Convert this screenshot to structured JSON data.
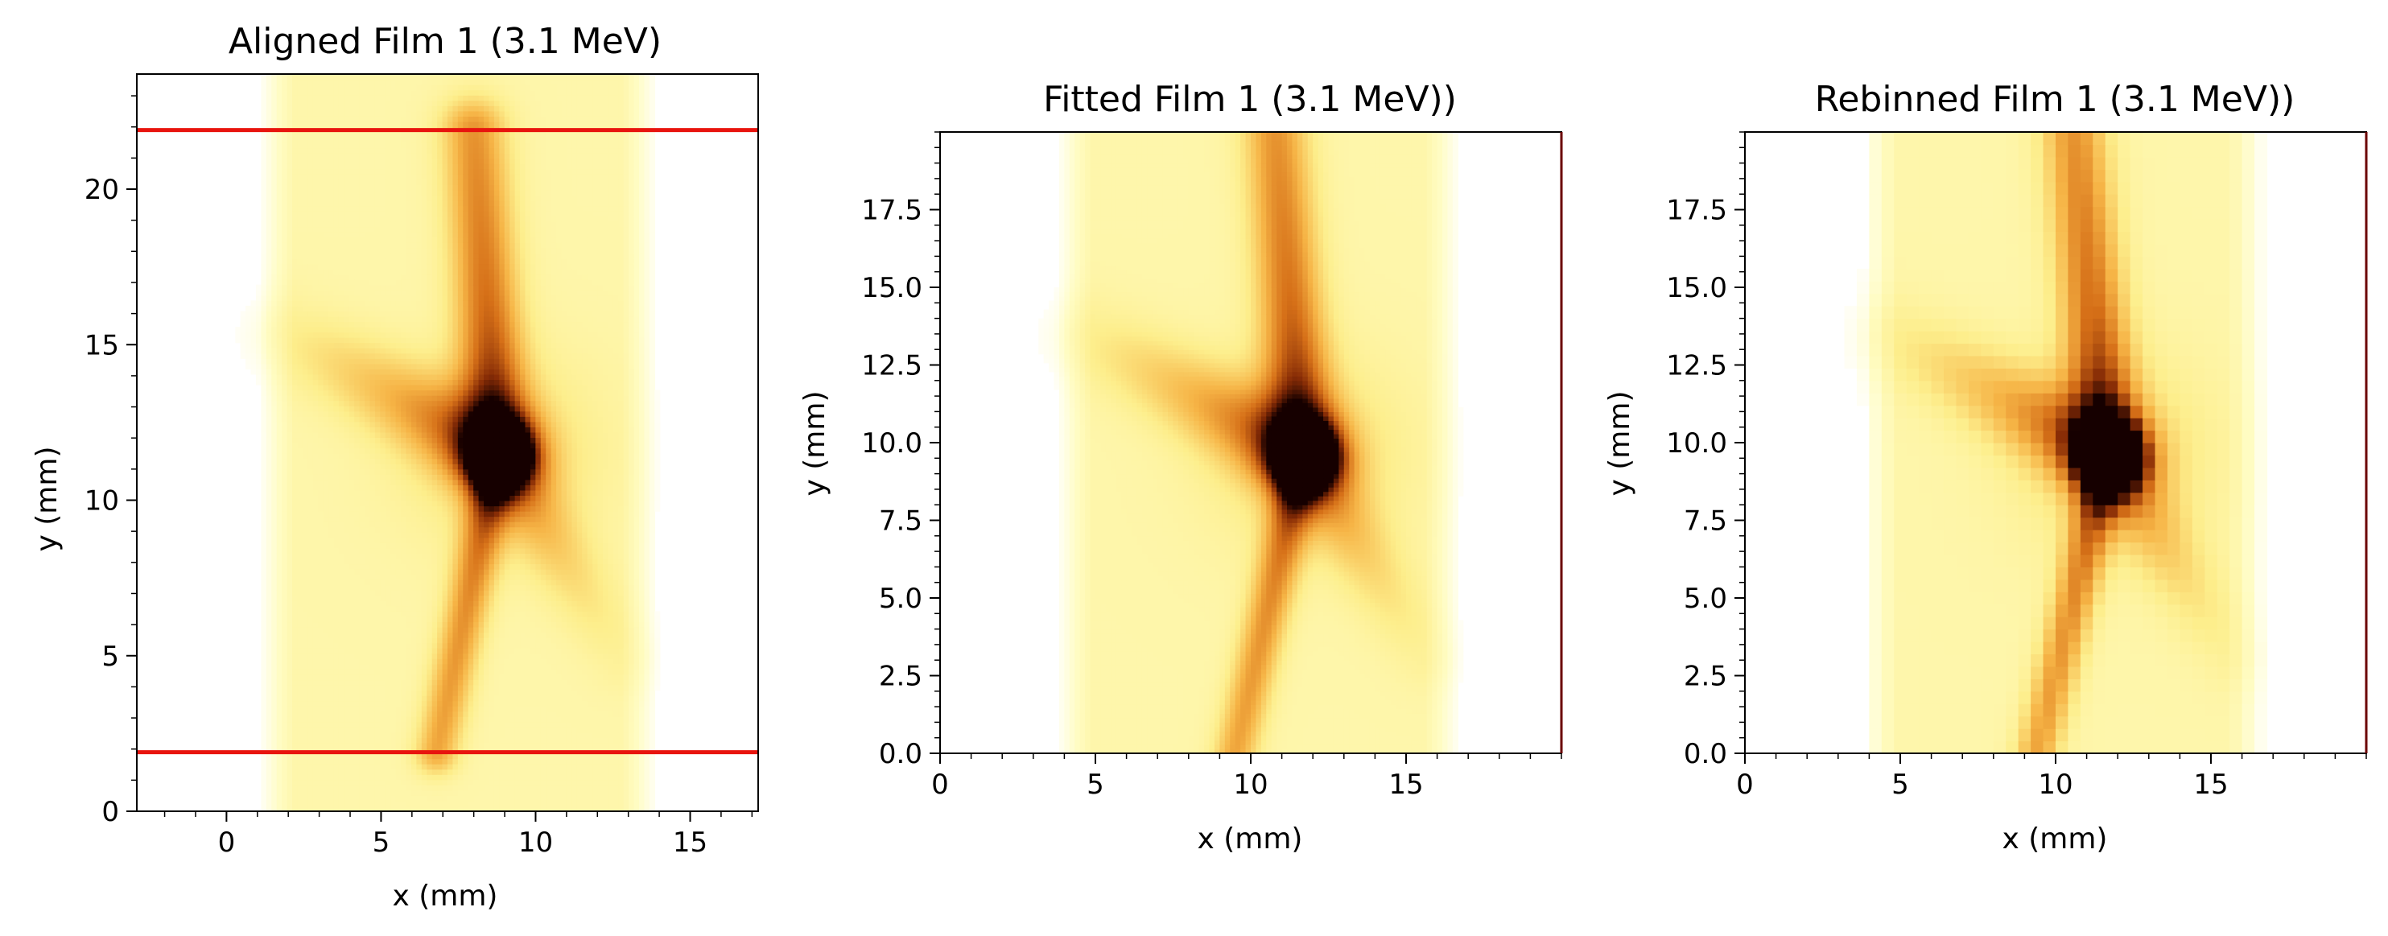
{
  "chart_data": [
    {
      "type": "heatmap",
      "title": "Aligned Film 1 (3.1 MeV)",
      "xlabel": "x (mm)",
      "ylabel": "y (mm)",
      "xlim": [
        -2.9,
        17.2
      ],
      "ylim": [
        0,
        23.7
      ],
      "xticks": [
        0,
        5,
        10,
        15
      ],
      "yticks": [
        0,
        5,
        10,
        15,
        20
      ],
      "xticklabels": [
        "0",
        "5",
        "10",
        "15"
      ],
      "yticklabels": [
        "0",
        "5",
        "10",
        "15",
        "20"
      ],
      "colormap": "afmhot_r",
      "film_extent": {
        "x": [
          1.8,
          13.2
        ],
        "y": [
          0,
          23.7
        ]
      },
      "features": {
        "upper_arm": {
          "from": [
            8.0,
            21.9
          ],
          "to": [
            8.8,
            11.5
          ]
        },
        "left_arm": {
          "from": [
            2.0,
            15.3
          ],
          "to": [
            8.8,
            11.5
          ]
        },
        "lower_arm": {
          "from": [
            6.8,
            1.9
          ],
          "to": [
            8.8,
            11.5
          ]
        },
        "right_arm": {
          "from": [
            8.8,
            11.5
          ],
          "to": [
            12.8,
            5.0
          ]
        },
        "hotspot": [
          8.9,
          11.6
        ]
      },
      "horizontal_lines": [
        {
          "y": 21.9,
          "color": "#e8140e"
        },
        {
          "y": 1.9,
          "color": "#e8140e"
        }
      ]
    },
    {
      "type": "heatmap",
      "title": "Fitted Film 1 (3.1 MeV))",
      "xlabel": "x (mm)",
      "ylabel": "y (mm)",
      "xlim": [
        0,
        20
      ],
      "ylim": [
        0,
        20
      ],
      "xticks": [
        0,
        5,
        10,
        15
      ],
      "yticks": [
        0,
        2.5,
        5,
        7.5,
        10,
        12.5,
        15,
        17.5
      ],
      "xticklabels": [
        "0",
        "5",
        "10",
        "15"
      ],
      "yticklabels": [
        "0.0",
        "2.5",
        "5.0",
        "7.5",
        "10.0",
        "12.5",
        "15.0",
        "17.5"
      ],
      "colormap": "afmhot_r",
      "film_extent": {
        "x": [
          4.5,
          16.0
        ],
        "y": [
          0,
          20
        ]
      },
      "features": {
        "upper_arm": {
          "from": [
            10.8,
            20.0
          ],
          "to": [
            11.7,
            9.6
          ]
        },
        "left_arm": {
          "from": [
            4.8,
            13.4
          ],
          "to": [
            11.7,
            9.6
          ]
        },
        "lower_arm": {
          "from": [
            9.5,
            0.0
          ],
          "to": [
            11.7,
            9.6
          ]
        },
        "right_arm": {
          "from": [
            11.7,
            9.6
          ],
          "to": [
            15.6,
            3.2
          ]
        },
        "hotspot": [
          11.8,
          9.7
        ]
      }
    },
    {
      "type": "heatmap",
      "title": "Rebinned Film 1 (3.1 MeV))",
      "xlabel": "x (mm)",
      "ylabel": "y (mm)",
      "xlim": [
        0,
        20
      ],
      "ylim": [
        0,
        20
      ],
      "xticks": [
        0,
        5,
        10,
        15
      ],
      "yticks": [
        0,
        2.5,
        5,
        7.5,
        10,
        12.5,
        15,
        17.5
      ],
      "xticklabels": [
        "0",
        "5",
        "10",
        "15"
      ],
      "yticklabels": [
        "0.0",
        "2.5",
        "5.0",
        "7.5",
        "10.0",
        "12.5",
        "15.0",
        "17.5"
      ],
      "colormap": "afmhot_r",
      "binned": true,
      "bin_size_mm": 0.4,
      "film_extent": {
        "x": [
          4.5,
          16.0
        ],
        "y": [
          0,
          20
        ]
      },
      "features": {
        "upper_arm": {
          "from": [
            10.6,
            20.0
          ],
          "to": [
            11.7,
            9.6
          ]
        },
        "left_arm": {
          "from": [
            4.8,
            13.4
          ],
          "to": [
            11.7,
            9.6
          ]
        },
        "lower_arm": {
          "from": [
            9.4,
            0.0
          ],
          "to": [
            11.7,
            9.6
          ]
        },
        "right_arm": {
          "from": [
            11.7,
            9.6
          ],
          "to": [
            15.6,
            3.2
          ]
        },
        "hotspot": [
          11.8,
          9.7
        ]
      }
    }
  ]
}
